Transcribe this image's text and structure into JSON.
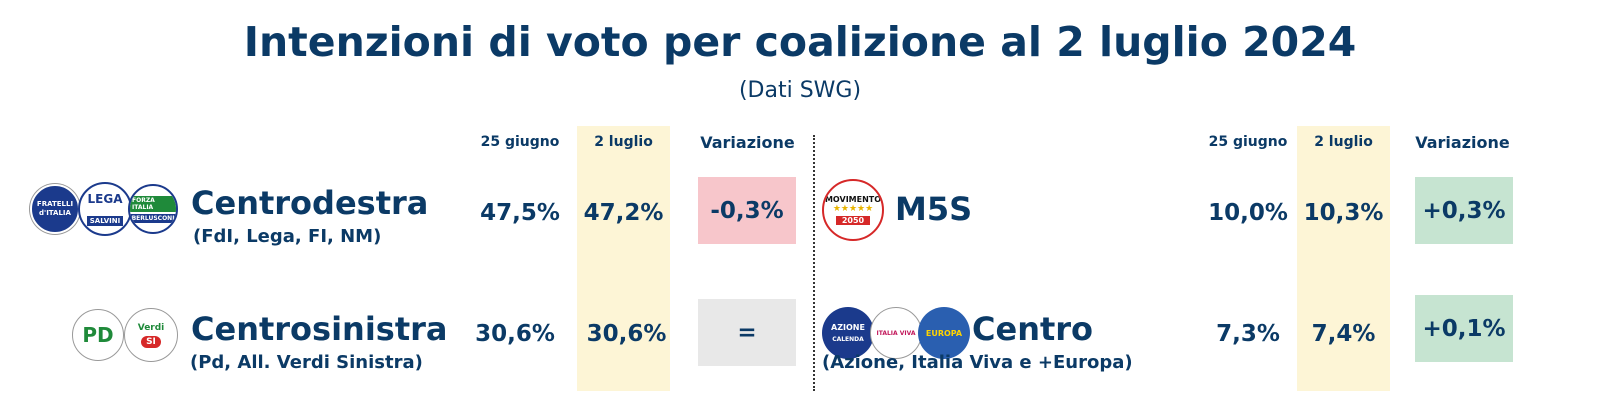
{
  "header": {
    "title": "Intenzioni di voto per coalizione al 2 luglio 2024",
    "subtitle": "(Dati SWG)"
  },
  "columns": {
    "prev_date": "25 giugno",
    "curr_date": "2 luglio",
    "change": "Variazione"
  },
  "rows": {
    "centrodestra": {
      "name": "Centrodestra",
      "members": "(FdI, Lega, FI, NM)",
      "prev": "47,5%",
      "curr": "47,2%",
      "change": "-0,3%",
      "change_color": "#f7c6cb",
      "logos": {
        "fdi": "FRATELLI d'ITALIA",
        "lega": "LEGA",
        "lega_sub": "SALVINI",
        "fi": "FORZA ITALIA",
        "fi_sub": "BERLUSCONI"
      }
    },
    "centrosinistra": {
      "name": "Centrosinistra",
      "members": "(Pd, All. Verdi Sinistra)",
      "prev": "30,6%",
      "curr": "30,6%",
      "change": "=",
      "change_color": "#e8e8e8",
      "logos": {
        "pd": "PD",
        "avs": "Verdi",
        "avs_si": "SI"
      }
    },
    "m5s": {
      "name": "M5S",
      "members": "",
      "prev": "10,0%",
      "curr": "10,3%",
      "change": "+0,3%",
      "change_color": "#c6e4d1",
      "logos": {
        "m5s": "MOVIMENTO",
        "m5s_year": "2050"
      }
    },
    "centro": {
      "name": "Centro",
      "members": "(Azione, Italia Viva e +Europa)",
      "prev": "7,3%",
      "curr": "7,4%",
      "change": "+0,1%",
      "change_color": "#c6e4d1",
      "logos": {
        "azione": "AZIONE",
        "azione_sub": "CALENDA",
        "iv": "ITALIA VIVA",
        "europa": "EUROPA"
      }
    }
  },
  "colors": {
    "text": "#0b3a66",
    "highlight_column": "#fdf5d6",
    "decrease": "#f7c6cb",
    "no_change": "#e8e8e8",
    "increase": "#c6e4d1"
  },
  "chart_data": {
    "type": "table",
    "title": "Intenzioni di voto per coalizione al 2 luglio 2024",
    "subtitle": "(Dati SWG)",
    "columns": [
      "25 giugno",
      "2 luglio",
      "Variazione"
    ],
    "rows": [
      {
        "name": "Centrodestra",
        "members": "(FdI, Lega, FI, NM)",
        "values": [
          47.5,
          47.2
        ],
        "change": -0.3
      },
      {
        "name": "Centrosinistra",
        "members": "(Pd, All. Verdi Sinistra)",
        "values": [
          30.6,
          30.6
        ],
        "change": 0
      },
      {
        "name": "M5S",
        "members": "",
        "values": [
          10.0,
          10.3
        ],
        "change": 0.3
      },
      {
        "name": "Centro",
        "members": "(Azione, Italia Viva e +Europa)",
        "values": [
          7.3,
          7.4
        ],
        "change": 0.1
      }
    ]
  }
}
